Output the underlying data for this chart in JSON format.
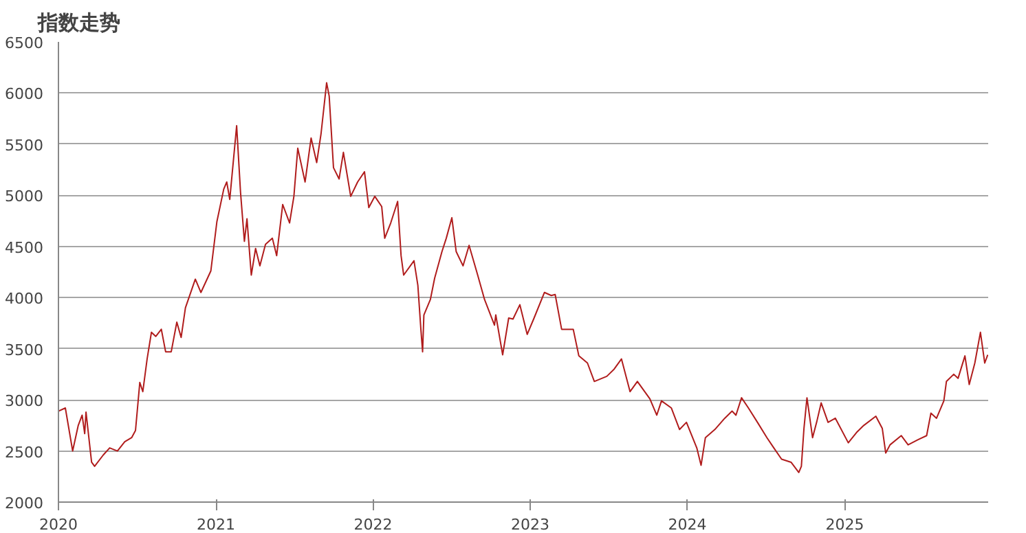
{
  "chart_data": {
    "type": "line",
    "title": "指数走势",
    "color": "#b01c1c",
    "grid": "y",
    "x": [
      "2020-01-01",
      "2020-01-17",
      "2020-02-03",
      "2020-02-16",
      "2020-02-25",
      "2020-03-02",
      "2020-03-05",
      "2020-03-18",
      "2020-03-25",
      "2020-04-14",
      "2020-04-29",
      "2020-05-17",
      "2020-06-03",
      "2020-06-19",
      "2020-06-28",
      "2020-07-08",
      "2020-07-15",
      "2020-07-25",
      "2020-08-04",
      "2020-08-14",
      "2020-08-27",
      "2020-09-06",
      "2020-09-19",
      "2020-10-02",
      "2020-10-12",
      "2020-10-22",
      "2020-11-14",
      "2020-11-27",
      "2020-12-20",
      "2021-01-03",
      "2021-01-19",
      "2021-01-26",
      "2021-02-02",
      "2021-02-08",
      "2021-02-18",
      "2021-02-27",
      "2021-03-08",
      "2021-03-14",
      "2021-03-24",
      "2021-04-03",
      "2021-04-13",
      "2021-04-26",
      "2021-05-12",
      "2021-05-22",
      "2021-06-05",
      "2021-06-21",
      "2021-07-01",
      "2021-07-10",
      "2021-07-27",
      "2021-08-10",
      "2021-08-23",
      "2021-09-02",
      "2021-09-15",
      "2021-09-21",
      "2021-10-01",
      "2021-10-14",
      "2021-10-24",
      "2021-11-10",
      "2021-11-26",
      "2021-12-12",
      "2021-12-22",
      "2022-01-05",
      "2022-01-21",
      "2022-01-28",
      "2022-02-11",
      "2022-02-27",
      "2022-03-07",
      "2022-03-13",
      "2022-04-06",
      "2022-04-15",
      "2022-04-22",
      "2022-04-26",
      "2022-04-29",
      "2022-05-14",
      "2022-05-24",
      "2022-06-10",
      "2022-06-20",
      "2022-07-03",
      "2022-07-13",
      "2022-07-29",
      "2022-08-12",
      "2022-09-01",
      "2022-09-17",
      "2022-10-10",
      "2022-10-13",
      "2022-10-29",
      "2022-11-12",
      "2022-11-22",
      "2022-12-08",
      "2022-12-25",
      "2023-01-10",
      "2023-02-03",
      "2023-02-19",
      "2023-02-28",
      "2023-03-15",
      "2023-04-11",
      "2023-04-24",
      "2023-05-14",
      "2023-05-30",
      "2023-06-28",
      "2023-07-15",
      "2023-08-01",
      "2023-08-21",
      "2023-09-07",
      "2023-10-06",
      "2023-10-22",
      "2023-11-02",
      "2023-11-25",
      "2023-12-14",
      "2023-12-30",
      "2024-01-23",
      "2024-02-02",
      "2024-02-12",
      "2024-03-05",
      "2024-03-28",
      "2024-04-14",
      "2024-04-23",
      "2024-05-06",
      "2024-05-22",
      "2024-06-12",
      "2024-07-04",
      "2024-07-20",
      "2024-08-07",
      "2024-08-29",
      "2024-09-16",
      "2024-09-22",
      "2024-09-28",
      "2024-10-05",
      "2024-10-18",
      "2024-10-28",
      "2024-11-07",
      "2024-11-23",
      "2024-12-10",
      "2025-01-09",
      "2025-01-28",
      "2025-02-14",
      "2025-03-14",
      "2025-03-29",
      "2025-04-06",
      "2025-04-16",
      "2025-05-12",
      "2025-05-28",
      "2025-06-20",
      "2025-07-10",
      "2025-07-20",
      "2025-08-02",
      "2025-08-19",
      "2025-08-25",
      "2025-09-11",
      "2025-09-21",
      "2025-10-07",
      "2025-10-17",
      "2025-10-30",
      "2025-11-12",
      "2025-11-22",
      "2025-11-29"
    ],
    "values": [
      2890,
      2920,
      2500,
      2750,
      2850,
      2670,
      2880,
      2390,
      2350,
      2460,
      2530,
      2500,
      2590,
      2630,
      2700,
      3170,
      3080,
      3400,
      3660,
      3620,
      3690,
      3470,
      3470,
      3760,
      3610,
      3900,
      4180,
      4050,
      4260,
      4740,
      5060,
      5130,
      4960,
      5230,
      5680,
      5030,
      4550,
      4770,
      4220,
      4480,
      4310,
      4520,
      4580,
      4410,
      4910,
      4730,
      4990,
      5460,
      5130,
      5560,
      5320,
      5600,
      6100,
      5970,
      5270,
      5160,
      5420,
      4990,
      5130,
      5230,
      4880,
      4990,
      4890,
      4580,
      4730,
      4940,
      4410,
      4220,
      4360,
      4120,
      3690,
      3470,
      3830,
      3980,
      4190,
      4450,
      4580,
      4780,
      4450,
      4310,
      4510,
      4220,
      3980,
      3730,
      3830,
      3440,
      3800,
      3790,
      3930,
      3640,
      3800,
      4050,
      4020,
      4030,
      3690,
      3690,
      3430,
      3360,
      3180,
      3230,
      3300,
      3400,
      3080,
      3180,
      3010,
      2850,
      2990,
      2920,
      2710,
      2780,
      2530,
      2360,
      2630,
      2710,
      2820,
      2890,
      2850,
      3020,
      2920,
      2780,
      2630,
      2530,
      2420,
      2390,
      2290,
      2350,
      2720,
      3020,
      2630,
      2790,
      2970,
      2780,
      2820,
      2580,
      2680,
      2750,
      2840,
      2720,
      2480,
      2560,
      2650,
      2560,
      2610,
      2650,
      2870,
      2820,
      2990,
      3180,
      3250,
      3210,
      3430,
      3150,
      3360,
      3660,
      3360,
      3440
    ],
    "xlim": [
      "2020-01-01",
      "2025-11-30"
    ],
    "xticks": [
      "2020",
      "2021",
      "2022",
      "2023",
      "2024",
      "2025"
    ],
    "ylim": [
      2000,
      6500
    ],
    "yticks": [
      2000,
      2500,
      3000,
      3500,
      4000,
      4500,
      5000,
      5500,
      6000,
      6500
    ]
  }
}
